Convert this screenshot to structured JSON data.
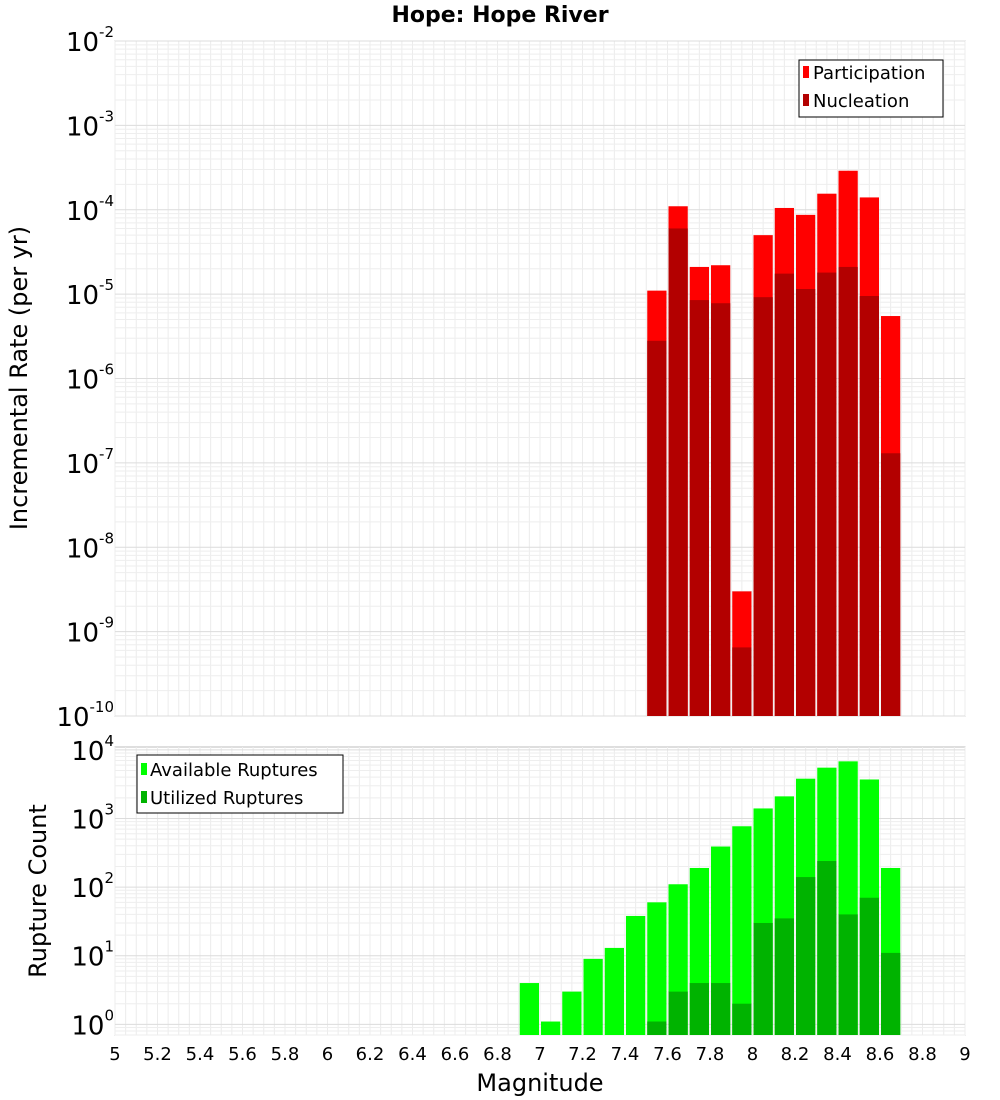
{
  "figure": {
    "title": "Hope: Hope River",
    "xlabel": "Magnitude"
  },
  "chart_data": [
    {
      "type": "bar",
      "ylabel": "Incremental Rate (per yr)",
      "yscale": "log",
      "ylim": [
        1e-10,
        0.01
      ],
      "xlim": [
        5,
        9
      ],
      "legend_position": "top-right",
      "y_ticks": [
        {
          "base": "10",
          "exp": "-10"
        },
        {
          "base": "10",
          "exp": "-9"
        },
        {
          "base": "10",
          "exp": "-8"
        },
        {
          "base": "10",
          "exp": "-7"
        },
        {
          "base": "10",
          "exp": "-6"
        },
        {
          "base": "10",
          "exp": "-5"
        },
        {
          "base": "10",
          "exp": "-4"
        },
        {
          "base": "10",
          "exp": "-3"
        },
        {
          "base": "10",
          "exp": "-2"
        }
      ],
      "x": [
        7.55,
        7.65,
        7.75,
        7.85,
        7.95,
        8.05,
        8.15,
        8.25,
        8.35,
        8.45,
        8.55,
        8.65
      ],
      "series": [
        {
          "name": "Participation",
          "color": "#ff0000",
          "values": [
            1.1e-05,
            0.00011,
            2.1e-05,
            2.2e-05,
            3e-09,
            5e-05,
            0.000105,
            8.7e-05,
            0.000155,
            0.00029,
            0.00014,
            5.5e-06
          ]
        },
        {
          "name": "Nucleation",
          "color": "#b30000",
          "values": [
            2.8e-06,
            6e-05,
            8.5e-06,
            7.8e-06,
            6.5e-10,
            9.2e-06,
            1.75e-05,
            1.15e-05,
            1.8e-05,
            2.1e-05,
            9.5e-06,
            1.3e-07
          ]
        }
      ]
    },
    {
      "type": "bar",
      "ylabel": "Rupture Count",
      "yscale": "log",
      "ylim": [
        0.7,
        11000
      ],
      "xlim": [
        5,
        9
      ],
      "legend_position": "top-left",
      "y_ticks": [
        {
          "base": "10",
          "exp": "0"
        },
        {
          "base": "10",
          "exp": "1"
        },
        {
          "base": "10",
          "exp": "2"
        },
        {
          "base": "10",
          "exp": "3"
        },
        {
          "base": "10",
          "exp": "4"
        }
      ],
      "x_ticks": [
        "5",
        "5.2",
        "5.4",
        "5.6",
        "5.8",
        "6",
        "6.2",
        "6.4",
        "6.6",
        "6.8",
        "7",
        "7.2",
        "7.4",
        "7.6",
        "7.8",
        "8",
        "8.2",
        "8.4",
        "8.6",
        "8.8",
        "9"
      ],
      "x": [
        6.95,
        7.05,
        7.15,
        7.25,
        7.35,
        7.45,
        7.55,
        7.65,
        7.75,
        7.85,
        7.95,
        8.05,
        8.15,
        8.25,
        8.35,
        8.45,
        8.55,
        8.65
      ],
      "series": [
        {
          "name": "Available Ruptures",
          "color": "#00ff00",
          "values": [
            4,
            1.1,
            3,
            9,
            13,
            38,
            60,
            110,
            190,
            390,
            770,
            1400,
            2100,
            3800,
            5500,
            6800,
            3700,
            190
          ]
        },
        {
          "name": "Utilized Ruptures",
          "color": "#00b300",
          "values": [
            0,
            0,
            0,
            0,
            0,
            0,
            1.1,
            3,
            4,
            4,
            2,
            30,
            35,
            140,
            240,
            40,
            70,
            11
          ]
        }
      ]
    }
  ]
}
